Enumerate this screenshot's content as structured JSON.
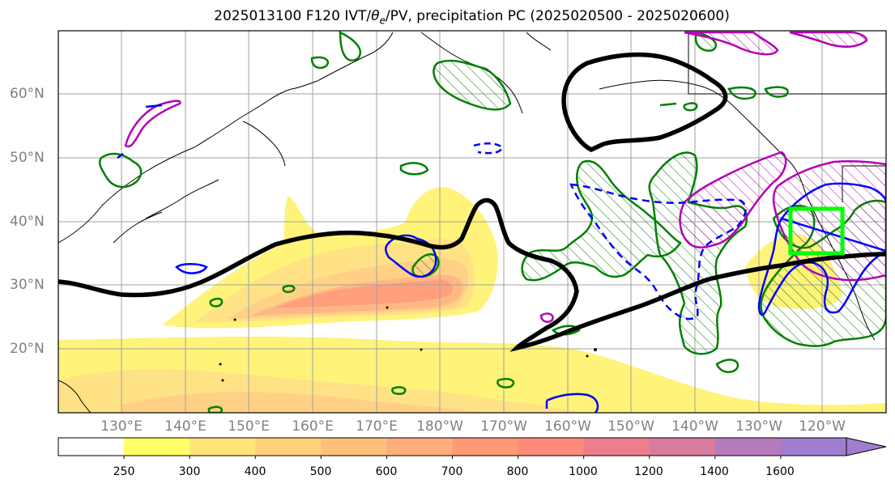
{
  "title": {
    "prefix": "2025013100 F120 IVT/",
    "theta": "θ",
    "theta_sub": "e",
    "suffix": "/PV, precipitation PC (2025020500 - 2025020600)"
  },
  "lat_labels": [
    "60°N",
    "50°N",
    "40°N",
    "30°N",
    "20°N"
  ],
  "lon_labels": [
    "130°E",
    "140°E",
    "150°E",
    "160°E",
    "170°E",
    "180°W",
    "170°W",
    "160°W",
    "150°W",
    "140°W",
    "130°W",
    "120°W"
  ],
  "colorbar": {
    "tick_labels": [
      "250",
      "300",
      "400",
      "500",
      "600",
      "700",
      "800",
      "1000",
      "1200",
      "1400",
      "1600"
    ],
    "colors": [
      "#ffffff",
      "#ffff66",
      "#ffe577",
      "#ffd27a",
      "#ffc07c",
      "#ffad7a",
      "#ff9a76",
      "#ff8a7a",
      "#ee7f8a",
      "#d97b9e",
      "#b57bbd",
      "#9f7ecf"
    ]
  },
  "legend_colors": {
    "ivt_fill_low": "#fff37a",
    "ivt_fill_high": "#ff8f78",
    "pv_contour": "#000000",
    "theta_e_solid": "#0000ff",
    "theta_e_dashed": "#0000ff",
    "pc_positive": "#008000",
    "pc_high": "#b400b4",
    "target_box": "#00ff00"
  }
}
